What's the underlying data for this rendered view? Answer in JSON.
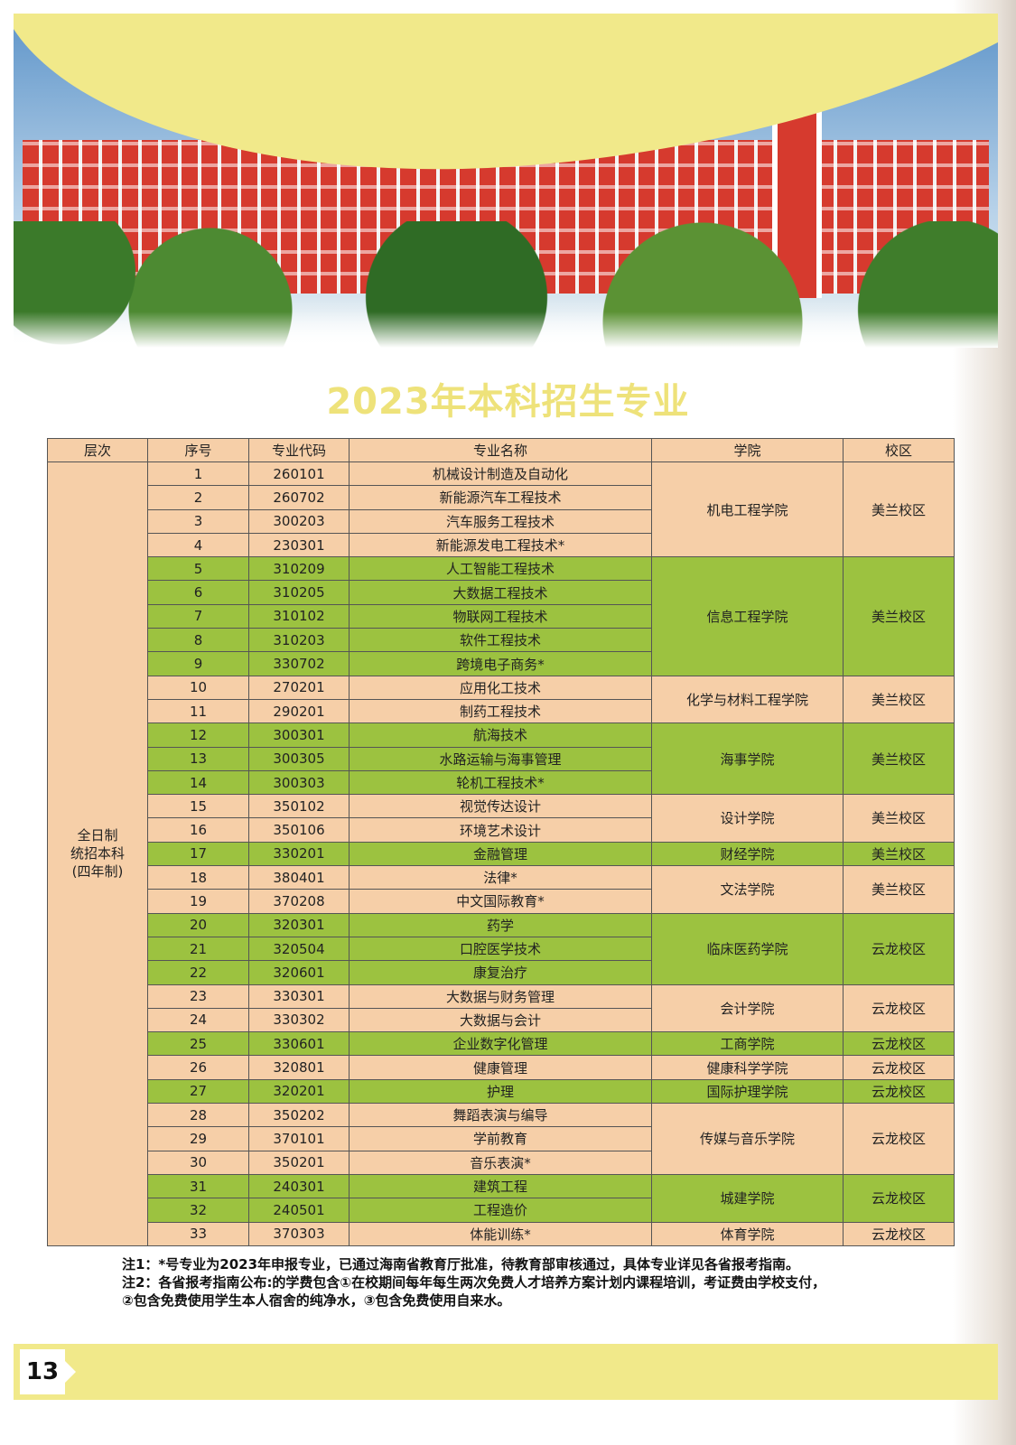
{
  "title": "2023年本科招生专业",
  "table": {
    "headers": [
      "层次",
      "序号",
      "专业代码",
      "专业名称",
      "学院",
      "校区"
    ],
    "level": "全日制\n统招本科\n(四年制)",
    "rows": [
      [
        "1",
        "260101",
        "机械设计制造及自动化"
      ],
      [
        "2",
        "260702",
        "新能源汽车工程技术"
      ],
      [
        "3",
        "300203",
        "汽车服务工程技术"
      ],
      [
        "4",
        "230301",
        "新能源发电工程技术*"
      ],
      [
        "5",
        "310209",
        "人工智能工程技术"
      ],
      [
        "6",
        "310205",
        "大数据工程技术"
      ],
      [
        "7",
        "310102",
        "物联网工程技术"
      ],
      [
        "8",
        "310203",
        "软件工程技术"
      ],
      [
        "9",
        "330702",
        "跨境电子商务*"
      ],
      [
        "10",
        "270201",
        "应用化工技术"
      ],
      [
        "11",
        "290201",
        "制药工程技术"
      ],
      [
        "12",
        "300301",
        "航海技术"
      ],
      [
        "13",
        "300305",
        "水路运输与海事管理"
      ],
      [
        "14",
        "300303",
        "轮机工程技术*"
      ],
      [
        "15",
        "350102",
        "视觉传达设计"
      ],
      [
        "16",
        "350106",
        "环境艺术设计"
      ],
      [
        "17",
        "330201",
        "金融管理"
      ],
      [
        "18",
        "380401",
        "法律*"
      ],
      [
        "19",
        "370208",
        "中文国际教育*"
      ],
      [
        "20",
        "320301",
        "药学"
      ],
      [
        "21",
        "320504",
        "口腔医学技术"
      ],
      [
        "22",
        "320601",
        "康复治疗"
      ],
      [
        "23",
        "330301",
        "大数据与财务管理"
      ],
      [
        "24",
        "330302",
        "大数据与会计"
      ],
      [
        "25",
        "330601",
        "企业数字化管理"
      ],
      [
        "26",
        "320801",
        "健康管理"
      ],
      [
        "27",
        "320201",
        "护理"
      ],
      [
        "28",
        "350202",
        "舞蹈表演与编导"
      ],
      [
        "29",
        "370101",
        "学前教育"
      ],
      [
        "30",
        "350201",
        "音乐表演*"
      ],
      [
        "31",
        "240301",
        "建筑工程"
      ],
      [
        "32",
        "240501",
        "工程造价"
      ],
      [
        "33",
        "370303",
        "体能训练*"
      ]
    ],
    "groups": [
      {
        "college": "机电工程学院",
        "campus": "美兰校区",
        "count": 4,
        "color": "p"
      },
      {
        "college": "信息工程学院",
        "campus": "美兰校区",
        "count": 5,
        "color": "g"
      },
      {
        "college": "化学与材料工程学院",
        "campus": "美兰校区",
        "count": 2,
        "color": "p"
      },
      {
        "college": "海事学院",
        "campus": "美兰校区",
        "count": 3,
        "color": "g"
      },
      {
        "college": "设计学院",
        "campus": "美兰校区",
        "count": 2,
        "color": "p"
      },
      {
        "college": "财经学院",
        "campus": "美兰校区",
        "count": 1,
        "color": "g"
      },
      {
        "college": "文法学院",
        "campus": "美兰校区",
        "count": 2,
        "color": "p"
      },
      {
        "college": "临床医药学院",
        "campus": "云龙校区",
        "count": 3,
        "color": "g"
      },
      {
        "college": "会计学院",
        "campus": "云龙校区",
        "count": 2,
        "color": "p"
      },
      {
        "college": "工商学院",
        "campus": "云龙校区",
        "count": 1,
        "color": "g"
      },
      {
        "college": "健康科学学院",
        "campus": "云龙校区",
        "count": 1,
        "color": "p"
      },
      {
        "college": "国际护理学院",
        "campus": "云龙校区",
        "count": 1,
        "color": "g"
      },
      {
        "college": "传媒与音乐学院",
        "campus": "云龙校区",
        "count": 3,
        "color": "p"
      },
      {
        "college": "城建学院",
        "campus": "云龙校区",
        "count": 2,
        "color": "g"
      },
      {
        "college": "体育学院",
        "campus": "云龙校区",
        "count": 1,
        "color": "p"
      }
    ]
  },
  "notes": [
    "注1：*号专业为2023年申报专业，已通过海南省教育厅批准，待教育部审核通过，具体专业详见各省报考指南。",
    "注2：各省报考指南公布:的学费包含①在校期间每年每生两次免费人才培养方案计划内课程培训，考证费由学校支付，",
    "②包含免费使用学生本人宿舍的纯净水，③包含免费使用自来水。"
  ],
  "page_number": "13",
  "colors": {
    "peach": "#f6cfa8",
    "green": "#9cc240",
    "title": "#eee27a",
    "band": "#f1e98a"
  }
}
